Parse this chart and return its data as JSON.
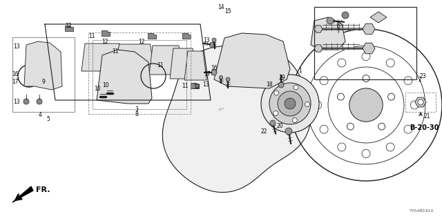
{
  "bg_color": "#ffffff",
  "line_color": "#1a1a1a",
  "fig_width": 6.4,
  "fig_height": 3.2,
  "dpi": 100,
  "diagram_code_text": "TYA4B1910",
  "b2030_text": "B-20-30",
  "fr_text": "FR."
}
